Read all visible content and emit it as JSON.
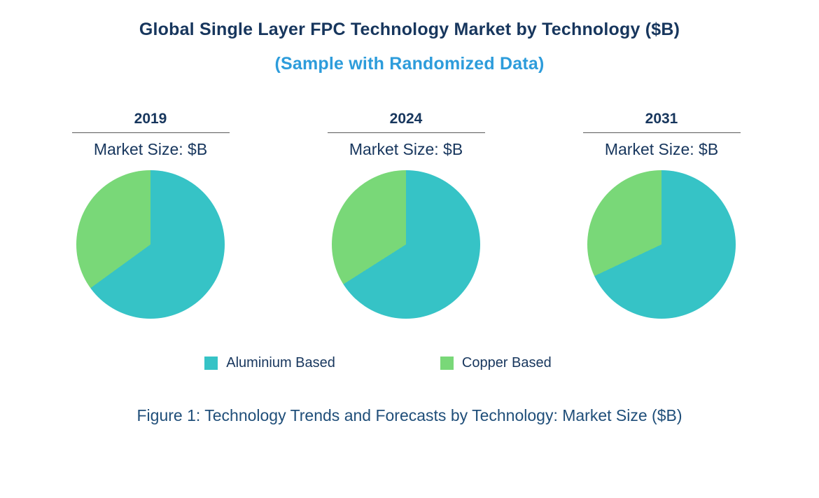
{
  "page": {
    "title": "Global Single Layer FPC Technology Market by Technology ($B)",
    "subtitle": "(Sample with Randomized Data)",
    "caption": "Figure 1: Technology Trends and Forecasts by Technology: Market Size ($B)"
  },
  "chart_data": {
    "type": "pie",
    "title": "Global Single Layer FPC Technology Market by Technology ($B)",
    "subtitle": "(Sample with Randomized Data)",
    "unit": "$B",
    "categories": [
      "Aluminium Based",
      "Copper Based"
    ],
    "colors": [
      "#36C3C6",
      "#79D878"
    ],
    "legend_position": "bottom",
    "market_size_label": "Market Size: $B",
    "pies": [
      {
        "year": "2019",
        "size_label": "Market Size: $B",
        "values": [
          65,
          35
        ]
      },
      {
        "year": "2024",
        "size_label": "Market Size: $B",
        "values": [
          66,
          34
        ]
      },
      {
        "year": "2031",
        "size_label": "Market Size: $B",
        "values": [
          68,
          32
        ]
      }
    ]
  }
}
